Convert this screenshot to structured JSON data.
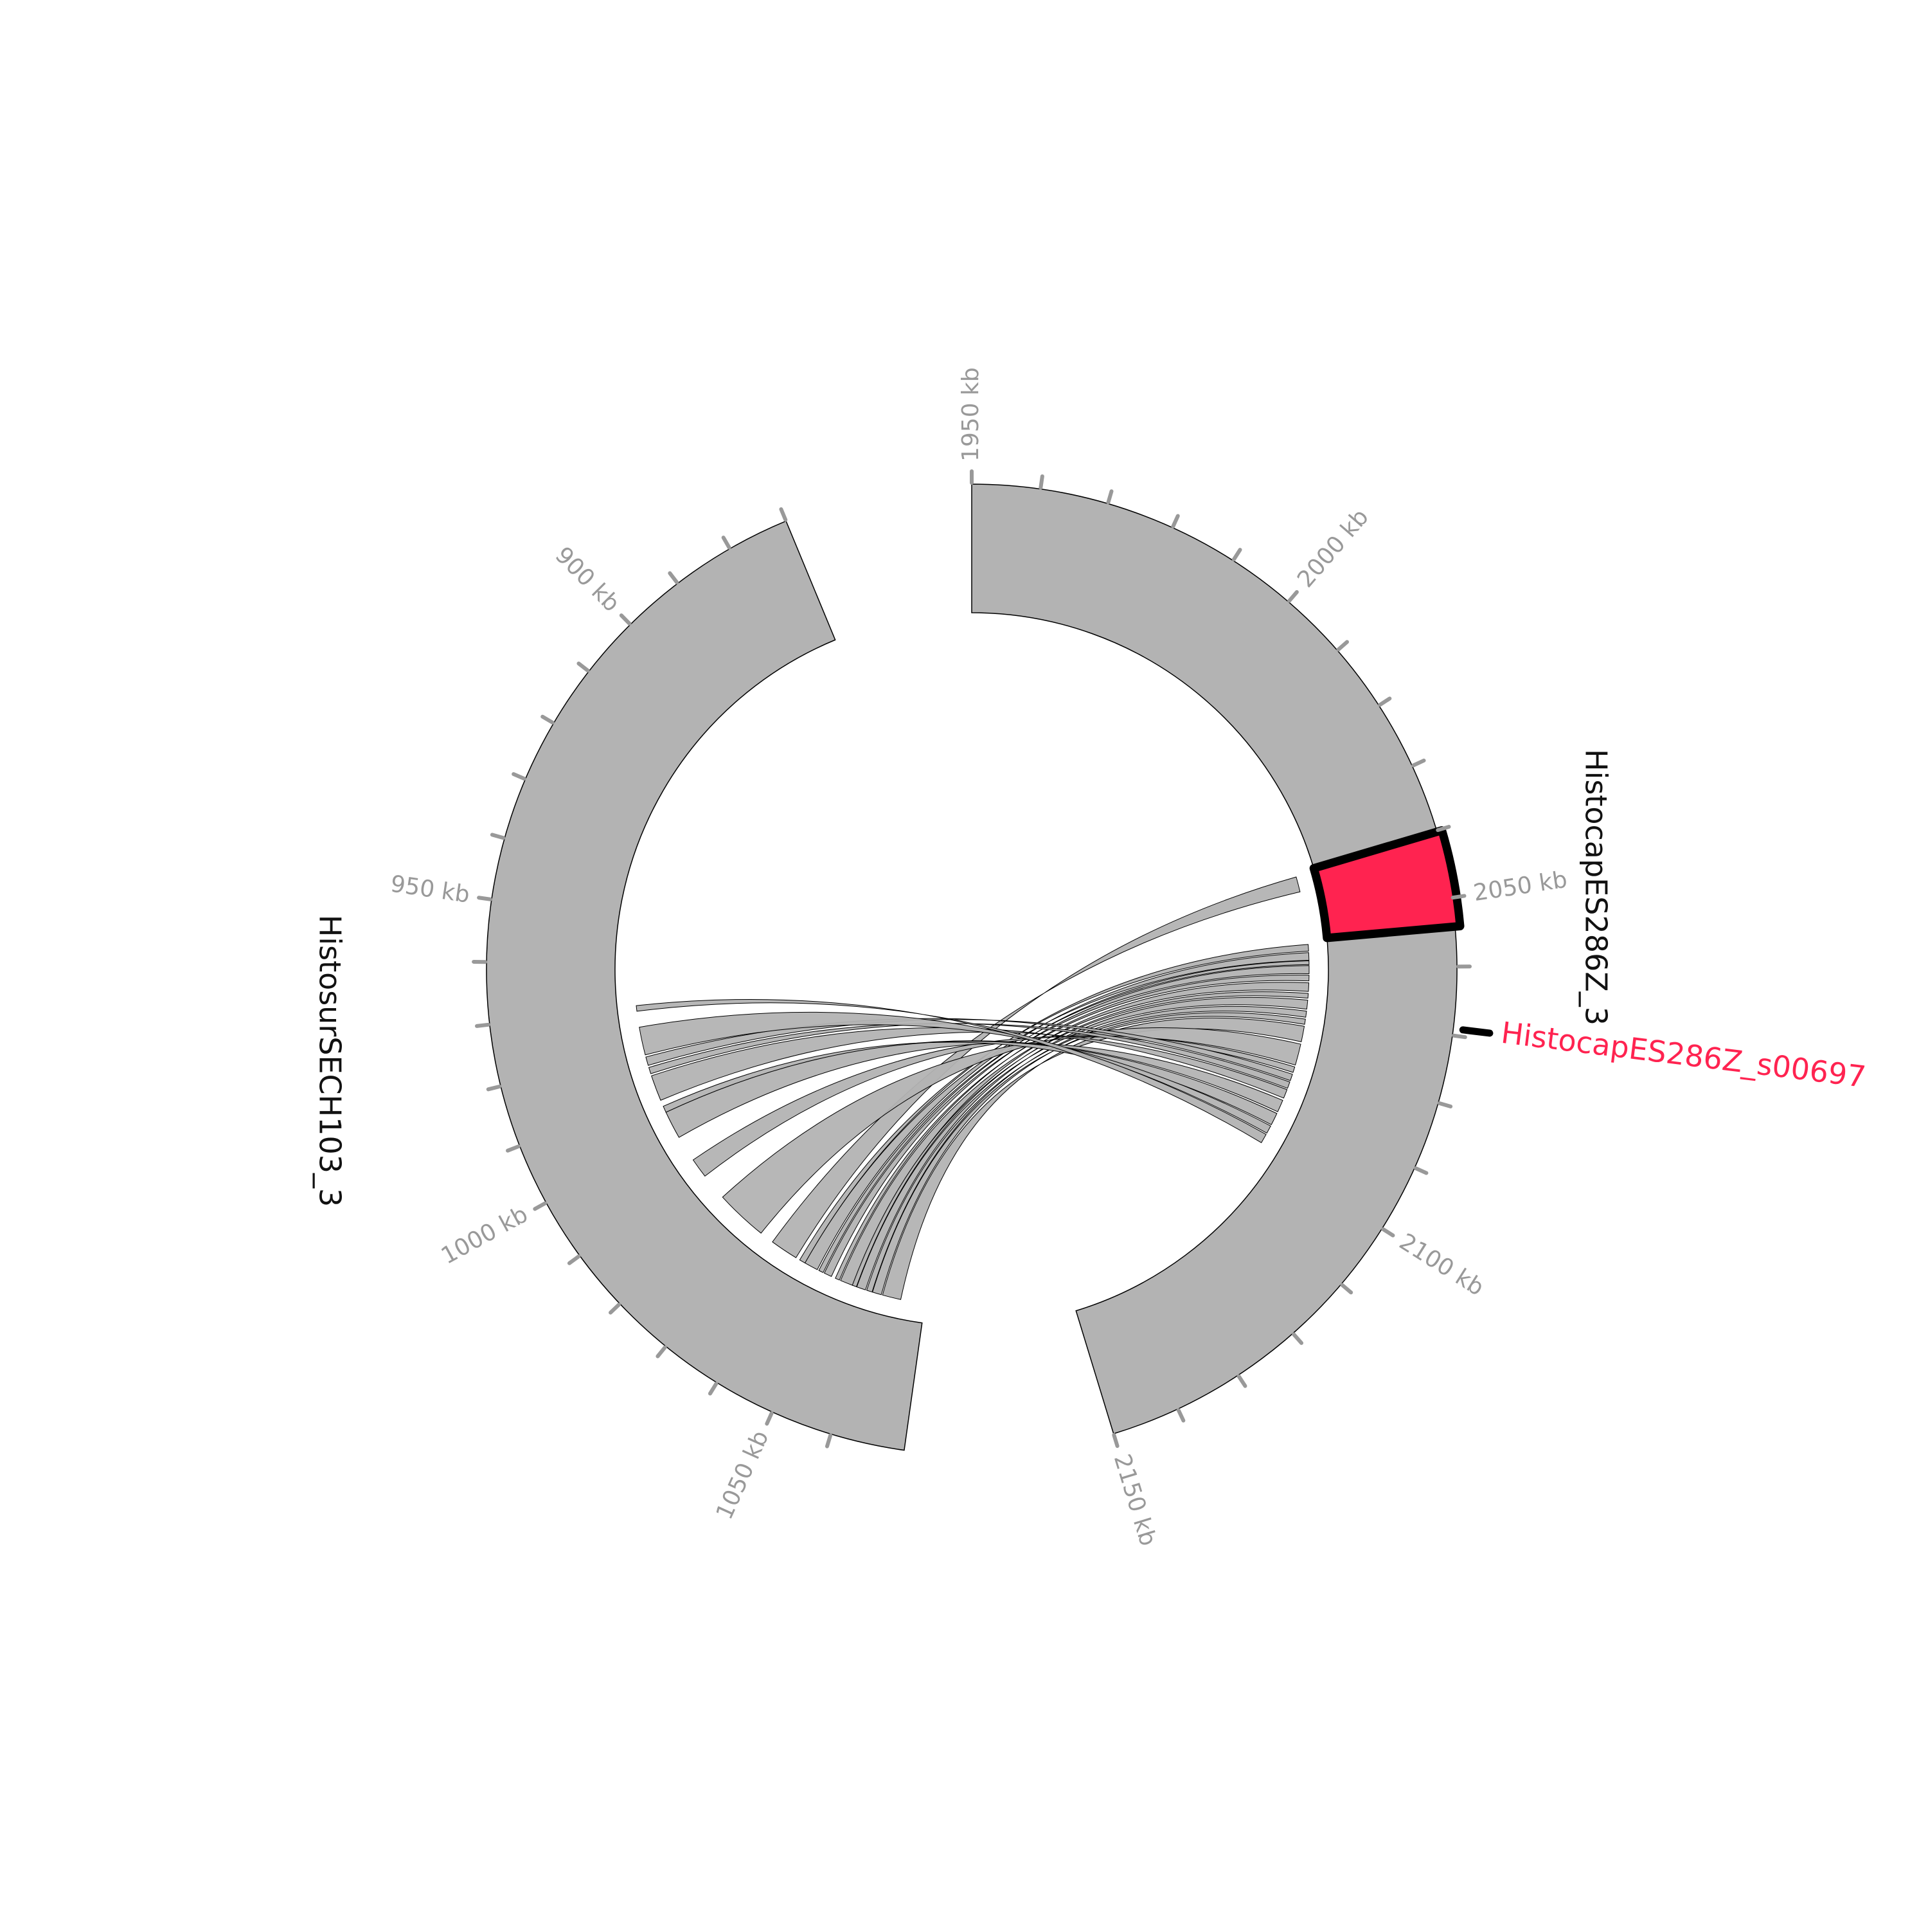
{
  "chart_data": {
    "type": "circos",
    "title": "",
    "tracks": [
      {
        "name": "HistosurSECH103_3",
        "range_kb": [
          870,
          1072
        ],
        "ticks_kb": [
          870,
          880,
          890,
          900,
          910,
          920,
          930,
          940,
          950,
          960,
          970,
          980,
          990,
          1000,
          1010,
          1020,
          1030,
          1040,
          1050,
          1060
        ],
        "tick_labels": [
          {
            "kb": 900,
            "text": "900 kb"
          },
          {
            "kb": 950,
            "text": "950 kb"
          },
          {
            "kb": 1000,
            "text": "1000 kb"
          },
          {
            "kb": 1050,
            "text": "1050 kb"
          }
        ]
      },
      {
        "name": "HistocapES286Z_3",
        "range_kb": [
          1950,
          2150
        ],
        "ticks_kb": [
          1950,
          1960,
          1970,
          1980,
          1990,
          2000,
          2010,
          2020,
          2030,
          2040,
          2050,
          2060,
          2070,
          2080,
          2090,
          2100,
          2110,
          2120,
          2130,
          2140,
          2150
        ],
        "tick_labels": [
          {
            "kb": 1950,
            "text": "1950 kb"
          },
          {
            "kb": 2000,
            "text": "2000 kb"
          },
          {
            "kb": 2050,
            "text": "2050 kb"
          },
          {
            "kb": 2100,
            "text": "2100 kb"
          },
          {
            "kb": 2150,
            "text": "2150 kb"
          }
        ]
      }
    ],
    "highlight": {
      "name": "HistocapES286Z_s00697",
      "track": "HistocapES286Z_3",
      "range_kb": [
        2040.2,
        2054.2
      ],
      "color": "#ff2350"
    },
    "links": [
      {
        "a": [
          2040.9,
          2044.1
        ],
        "b": [
          1033.9,
          1040.4
        ]
      },
      {
        "a": [
          2055.2,
          2056.6
        ],
        "b": [
          1041.4,
          1042.8
        ]
      },
      {
        "a": [
          2056.9,
          2058.5
        ],
        "b": [
          1042.8,
          1046.0
        ]
      },
      {
        "a": [
          2058.6,
          2059.4
        ],
        "b": [
          1046.4,
          1047.5
        ]
      },
      {
        "a": [
          2059.6,
          2061.3
        ],
        "b": [
          1047.8,
          1049.6
        ]
      },
      {
        "a": [
          2061.6,
          2062.8
        ],
        "b": [
          1050.6,
          1051.6
        ]
      },
      {
        "a": [
          2063.2,
          2065.0
        ],
        "b": [
          1051.9,
          1055.0
        ]
      },
      {
        "a": [
          2065.4,
          2066.4
        ],
        "b": [
          1054.8,
          1055.8
        ]
      },
      {
        "a": [
          2066.8,
          2068.7
        ],
        "b": [
          1055.9,
          1058.0
        ]
      },
      {
        "a": [
          2069.1,
          2070.4
        ],
        "b": [
          1058.3,
          1059.6
        ]
      },
      {
        "a": [
          2070.8,
          2071.9
        ],
        "b": [
          1059.7,
          1061.8
        ]
      },
      {
        "a": [
          2072.3,
          2075.6
        ],
        "b": [
          1062.1,
          1066.4
        ]
      },
      {
        "a": [
          2076.1,
          2080.6
        ],
        "b": [
          1018.5,
          1030.6
        ]
      },
      {
        "a": [
          2081.0,
          2082.2
        ],
        "b": [
          1007.6,
          1012.2
        ]
      },
      {
        "a": [
          2082.6,
          2084.0
        ],
        "b": [
          981.5,
          983.5
        ]
      },
      {
        "a": [
          2084.3,
          2085.7
        ],
        "b": [
          984.0,
          985.5
        ]
      },
      {
        "a": [
          2086.0,
          2087.9
        ],
        "b": [
          986.0,
          992.0
        ]
      },
      {
        "a": [
          2088.4,
          2091.0
        ],
        "b": [
          995.0,
          1001.5
        ]
      },
      {
        "a": [
          2091.4,
          2094.0
        ],
        "b": [
          993.5,
          995.0
        ]
      },
      {
        "a": [
          2094.3,
          2096.0
        ],
        "b": [
          974.5,
          981.0
        ]
      },
      {
        "a": [
          2096.3,
          2098.3
        ],
        "b": [
          969.5,
          970.8
        ]
      }
    ]
  }
}
